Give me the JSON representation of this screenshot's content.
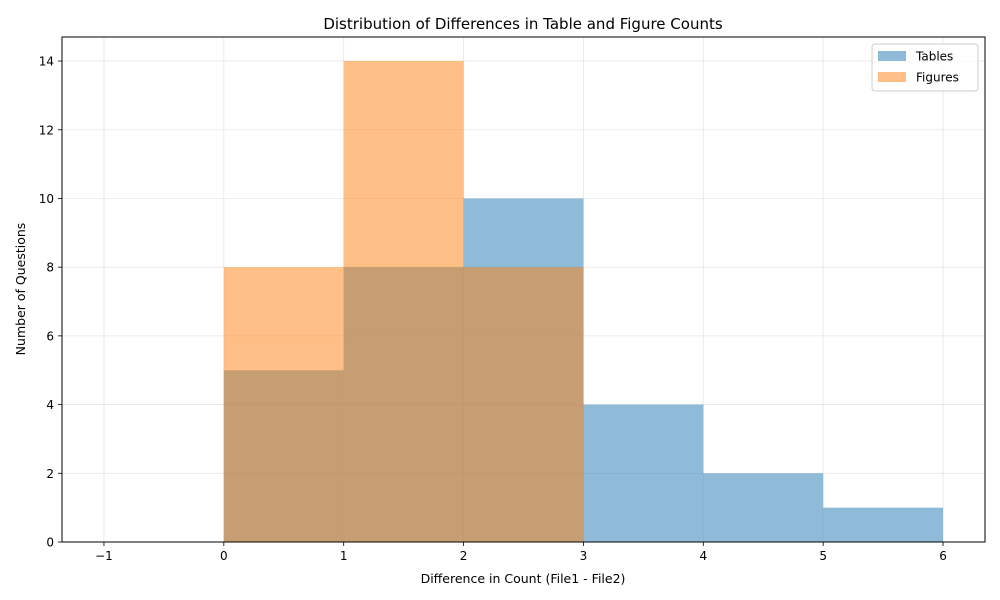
{
  "chart_data": {
    "type": "histogram",
    "title": "Distribution of Differences in Table and Figure Counts",
    "xlabel": "Difference in Count (File1 - File2)",
    "ylabel": "Number of Questions",
    "xlim": [
      -1.35,
      6.35
    ],
    "ylim": [
      0,
      14.7
    ],
    "xticks": [
      -1,
      0,
      1,
      2,
      3,
      4,
      5,
      6
    ],
    "xtick_labels": [
      "−1",
      "0",
      "1",
      "2",
      "3",
      "4",
      "5",
      "6"
    ],
    "yticks": [
      0,
      2,
      4,
      6,
      8,
      10,
      12,
      14
    ],
    "ytick_labels": [
      "0",
      "2",
      "4",
      "6",
      "8",
      "10",
      "12",
      "14"
    ],
    "grid": true,
    "legend_position": "top-right",
    "bin_edges": [
      -1,
      0,
      1,
      2,
      3,
      4,
      5,
      6
    ],
    "series": [
      {
        "name": "Tables",
        "color": "#1f77b4",
        "alpha": 0.5,
        "values": [
          0,
          5,
          8,
          10,
          4,
          2,
          1
        ]
      },
      {
        "name": "Figures",
        "color": "#ff7f0e",
        "alpha": 0.5,
        "values": [
          0,
          8,
          14,
          8,
          0,
          0,
          0
        ]
      }
    ]
  }
}
